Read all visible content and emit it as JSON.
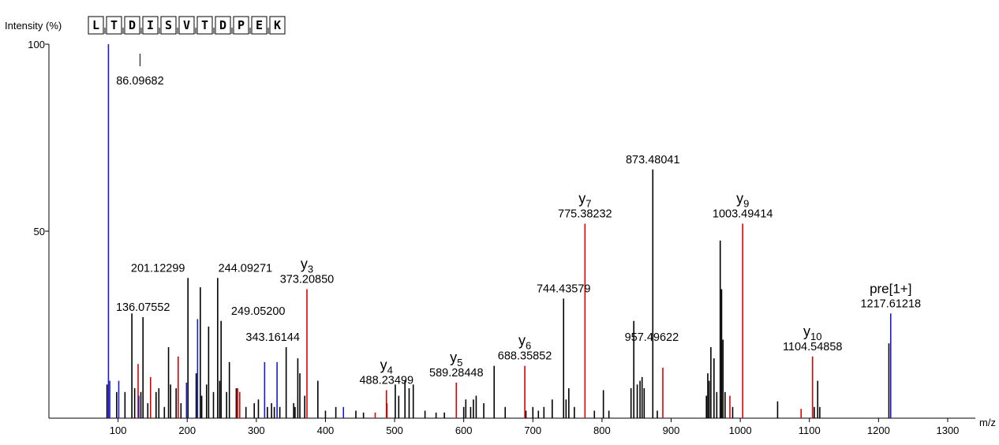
{
  "colors": {
    "unassigned": "#000000",
    "y_ion": "#e00000",
    "b_ion": "#1a1acc",
    "precursor": "#1a1acc"
  },
  "chart_data": {
    "type": "bar",
    "ylabel": "Intensity (%)",
    "xlabel": "m/z",
    "xlim": [
      0,
      1340
    ],
    "ylim": [
      0,
      100
    ],
    "x_ticks": [
      100,
      200,
      300,
      400,
      500,
      600,
      700,
      800,
      900,
      1000,
      1100,
      1200,
      1300
    ],
    "y_ticks": [
      50,
      100
    ],
    "sequence": [
      "L",
      "T",
      "D",
      "I",
      "S",
      "V",
      "T",
      "D",
      "P",
      "E",
      "K"
    ],
    "labeled_peaks": [
      {
        "mz": 86.09682,
        "intensity": 100,
        "kind": "b",
        "label": "86.09682"
      },
      {
        "mz": 136.07552,
        "intensity": 27,
        "kind": "unassigned",
        "label": "136.07552"
      },
      {
        "mz": 201.12299,
        "intensity": 37.5,
        "kind": "unassigned",
        "label": "201.12299"
      },
      {
        "mz": 244.09271,
        "intensity": 37.5,
        "kind": "unassigned",
        "label": "244.09271"
      },
      {
        "mz": 249.052,
        "intensity": 26,
        "kind": "unassigned",
        "label": "249.05200"
      },
      {
        "mz": 343.16144,
        "intensity": 19,
        "kind": "unassigned",
        "label": "343.16144"
      },
      {
        "mz": 373.2085,
        "intensity": 34.5,
        "kind": "y",
        "label": "373.20850",
        "ion": "y",
        "ion_num": "3"
      },
      {
        "mz": 488.23499,
        "intensity": 7.5,
        "kind": "y",
        "label": "488.23499",
        "ion": "y",
        "ion_num": "4"
      },
      {
        "mz": 589.28448,
        "intensity": 9.5,
        "kind": "y",
        "label": "589.28448",
        "ion": "y",
        "ion_num": "5"
      },
      {
        "mz": 688.35852,
        "intensity": 14,
        "kind": "y",
        "label": "688.35852",
        "ion": "y",
        "ion_num": "6"
      },
      {
        "mz": 744.43579,
        "intensity": 32,
        "kind": "unassigned",
        "label": "744.43579"
      },
      {
        "mz": 775.38232,
        "intensity": 52,
        "kind": "y",
        "label": "775.38232",
        "ion": "y",
        "ion_num": "7"
      },
      {
        "mz": 873.48041,
        "intensity": 66.5,
        "kind": "unassigned",
        "label": "873.48041"
      },
      {
        "mz": 957.49622,
        "intensity": 19,
        "kind": "unassigned",
        "label": "957.49622"
      },
      {
        "mz": 1003.49414,
        "intensity": 52,
        "kind": "y",
        "label": "1003.49414",
        "ion": "y",
        "ion_num": "9"
      },
      {
        "mz": 1104.54858,
        "intensity": 16.5,
        "kind": "y",
        "label": "1104.54858",
        "ion": "y",
        "ion_num": "10"
      },
      {
        "mz": 1217.61218,
        "intensity": 28,
        "kind": "precursor",
        "label": "1217.61218",
        "ion": "pre[1+]"
      }
    ],
    "other_peaks": [
      {
        "mz": 84,
        "intensity": 9,
        "kind": "unassigned"
      },
      {
        "mz": 88,
        "intensity": 10,
        "kind": "b"
      },
      {
        "mz": 98,
        "intensity": 7,
        "kind": "unassigned"
      },
      {
        "mz": 101,
        "intensity": 10,
        "kind": "b"
      },
      {
        "mz": 110,
        "intensity": 7,
        "kind": "unassigned"
      },
      {
        "mz": 120,
        "intensity": 28,
        "kind": "unassigned"
      },
      {
        "mz": 124,
        "intensity": 8,
        "kind": "unassigned"
      },
      {
        "mz": 129,
        "intensity": 14.5,
        "kind": "y"
      },
      {
        "mz": 130,
        "intensity": 6,
        "kind": "b"
      },
      {
        "mz": 133,
        "intensity": 7,
        "kind": "unassigned"
      },
      {
        "mz": 143,
        "intensity": 4,
        "kind": "unassigned"
      },
      {
        "mz": 147,
        "intensity": 11,
        "kind": "y"
      },
      {
        "mz": 155,
        "intensity": 7,
        "kind": "unassigned"
      },
      {
        "mz": 159,
        "intensity": 8,
        "kind": "unassigned"
      },
      {
        "mz": 167,
        "intensity": 3,
        "kind": "unassigned"
      },
      {
        "mz": 173,
        "intensity": 19,
        "kind": "unassigned"
      },
      {
        "mz": 176,
        "intensity": 9,
        "kind": "unassigned"
      },
      {
        "mz": 184,
        "intensity": 8,
        "kind": "unassigned"
      },
      {
        "mz": 187,
        "intensity": 16.5,
        "kind": "y"
      },
      {
        "mz": 191,
        "intensity": 4,
        "kind": "unassigned"
      },
      {
        "mz": 199,
        "intensity": 9.5,
        "kind": "b"
      },
      {
        "mz": 213,
        "intensity": 12,
        "kind": "unassigned"
      },
      {
        "mz": 215,
        "intensity": 26.5,
        "kind": "b"
      },
      {
        "mz": 219,
        "intensity": 35,
        "kind": "unassigned"
      },
      {
        "mz": 221,
        "intensity": 6,
        "kind": "unassigned"
      },
      {
        "mz": 228,
        "intensity": 9,
        "kind": "unassigned"
      },
      {
        "mz": 231,
        "intensity": 24.5,
        "kind": "unassigned"
      },
      {
        "mz": 238,
        "intensity": 7,
        "kind": "unassigned"
      },
      {
        "mz": 247,
        "intensity": 10,
        "kind": "unassigned"
      },
      {
        "mz": 257,
        "intensity": 7,
        "kind": "unassigned"
      },
      {
        "mz": 261,
        "intensity": 15,
        "kind": "unassigned"
      },
      {
        "mz": 271,
        "intensity": 8,
        "kind": "unassigned"
      },
      {
        "mz": 273,
        "intensity": 8,
        "kind": "y"
      },
      {
        "mz": 276,
        "intensity": 7,
        "kind": "y"
      },
      {
        "mz": 285,
        "intensity": 3,
        "kind": "unassigned"
      },
      {
        "mz": 297,
        "intensity": 4,
        "kind": "unassigned"
      },
      {
        "mz": 303,
        "intensity": 5,
        "kind": "unassigned"
      },
      {
        "mz": 312,
        "intensity": 15,
        "kind": "b"
      },
      {
        "mz": 316,
        "intensity": 3,
        "kind": "unassigned"
      },
      {
        "mz": 322,
        "intensity": 4,
        "kind": "unassigned"
      },
      {
        "mz": 326,
        "intensity": 3,
        "kind": "unassigned"
      },
      {
        "mz": 330,
        "intensity": 15,
        "kind": "b"
      },
      {
        "mz": 334,
        "intensity": 3,
        "kind": "unassigned"
      },
      {
        "mz": 354,
        "intensity": 4,
        "kind": "unassigned"
      },
      {
        "mz": 356,
        "intensity": 3,
        "kind": "unassigned"
      },
      {
        "mz": 360,
        "intensity": 16,
        "kind": "unassigned"
      },
      {
        "mz": 363,
        "intensity": 12,
        "kind": "unassigned"
      },
      {
        "mz": 370,
        "intensity": 6,
        "kind": "unassigned"
      },
      {
        "mz": 389,
        "intensity": 10,
        "kind": "unassigned"
      },
      {
        "mz": 400,
        "intensity": 2,
        "kind": "unassigned"
      },
      {
        "mz": 415,
        "intensity": 3,
        "kind": "unassigned"
      },
      {
        "mz": 426,
        "intensity": 3,
        "kind": "b"
      },
      {
        "mz": 444,
        "intensity": 2,
        "kind": "unassigned"
      },
      {
        "mz": 455,
        "intensity": 1.5,
        "kind": "unassigned"
      },
      {
        "mz": 472,
        "intensity": 1.5,
        "kind": "y"
      },
      {
        "mz": 489,
        "intensity": 4,
        "kind": "y"
      },
      {
        "mz": 501,
        "intensity": 9,
        "kind": "unassigned"
      },
      {
        "mz": 506,
        "intensity": 6,
        "kind": "unassigned"
      },
      {
        "mz": 515,
        "intensity": 10,
        "kind": "unassigned"
      },
      {
        "mz": 521,
        "intensity": 8,
        "kind": "unassigned"
      },
      {
        "mz": 527,
        "intensity": 9,
        "kind": "unassigned"
      },
      {
        "mz": 544,
        "intensity": 2,
        "kind": "unassigned"
      },
      {
        "mz": 560,
        "intensity": 1.5,
        "kind": "unassigned"
      },
      {
        "mz": 572,
        "intensity": 1.5,
        "kind": "unassigned"
      },
      {
        "mz": 600,
        "intensity": 3,
        "kind": "unassigned"
      },
      {
        "mz": 603,
        "intensity": 5,
        "kind": "unassigned"
      },
      {
        "mz": 610,
        "intensity": 3,
        "kind": "unassigned"
      },
      {
        "mz": 614,
        "intensity": 5,
        "kind": "unassigned"
      },
      {
        "mz": 618,
        "intensity": 6,
        "kind": "unassigned"
      },
      {
        "mz": 629,
        "intensity": 4,
        "kind": "unassigned"
      },
      {
        "mz": 644,
        "intensity": 14,
        "kind": "unassigned"
      },
      {
        "mz": 660,
        "intensity": 3,
        "kind": "unassigned"
      },
      {
        "mz": 690,
        "intensity": 2,
        "kind": "unassigned"
      },
      {
        "mz": 700,
        "intensity": 3,
        "kind": "unassigned"
      },
      {
        "mz": 708,
        "intensity": 2,
        "kind": "unassigned"
      },
      {
        "mz": 716,
        "intensity": 3,
        "kind": "unassigned"
      },
      {
        "mz": 728,
        "intensity": 5,
        "kind": "unassigned"
      },
      {
        "mz": 748,
        "intensity": 5,
        "kind": "unassigned"
      },
      {
        "mz": 752,
        "intensity": 8,
        "kind": "unassigned"
      },
      {
        "mz": 760,
        "intensity": 3,
        "kind": "unassigned"
      },
      {
        "mz": 789,
        "intensity": 2,
        "kind": "unassigned"
      },
      {
        "mz": 802,
        "intensity": 7.5,
        "kind": "unassigned"
      },
      {
        "mz": 810,
        "intensity": 2,
        "kind": "unassigned"
      },
      {
        "mz": 842,
        "intensity": 8,
        "kind": "unassigned"
      },
      {
        "mz": 846,
        "intensity": 26,
        "kind": "unassigned"
      },
      {
        "mz": 851,
        "intensity": 9,
        "kind": "unassigned"
      },
      {
        "mz": 855,
        "intensity": 10,
        "kind": "unassigned"
      },
      {
        "mz": 858,
        "intensity": 11,
        "kind": "unassigned"
      },
      {
        "mz": 861,
        "intensity": 8,
        "kind": "unassigned"
      },
      {
        "mz": 880,
        "intensity": 2,
        "kind": "unassigned"
      },
      {
        "mz": 888,
        "intensity": 13.5,
        "kind": "y"
      },
      {
        "mz": 951,
        "intensity": 6,
        "kind": "unassigned"
      },
      {
        "mz": 953,
        "intensity": 12,
        "kind": "unassigned"
      },
      {
        "mz": 955,
        "intensity": 10,
        "kind": "unassigned"
      },
      {
        "mz": 962,
        "intensity": 16,
        "kind": "unassigned"
      },
      {
        "mz": 966,
        "intensity": 7,
        "kind": "unassigned"
      },
      {
        "mz": 971,
        "intensity": 47.5,
        "kind": "unassigned"
      },
      {
        "mz": 973,
        "intensity": 34.5,
        "kind": "unassigned"
      },
      {
        "mz": 975,
        "intensity": 21,
        "kind": "unassigned"
      },
      {
        "mz": 978,
        "intensity": 7,
        "kind": "unassigned"
      },
      {
        "mz": 985,
        "intensity": 6,
        "kind": "y"
      },
      {
        "mz": 989,
        "intensity": 3,
        "kind": "unassigned"
      },
      {
        "mz": 1054,
        "intensity": 4.5,
        "kind": "unassigned"
      },
      {
        "mz": 1088,
        "intensity": 2.5,
        "kind": "y"
      },
      {
        "mz": 1107,
        "intensity": 3,
        "kind": "unassigned"
      },
      {
        "mz": 1112,
        "intensity": 10,
        "kind": "unassigned"
      },
      {
        "mz": 1115,
        "intensity": 3,
        "kind": "unassigned"
      },
      {
        "mz": 1215,
        "intensity": 20,
        "kind": "unassigned"
      }
    ]
  }
}
